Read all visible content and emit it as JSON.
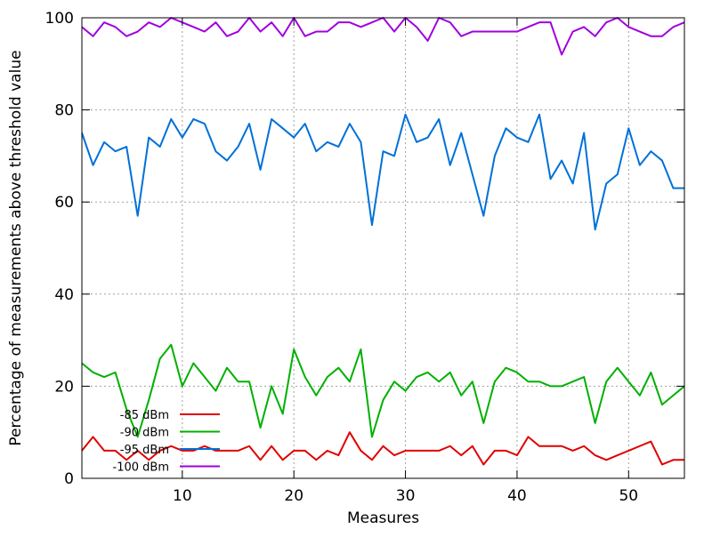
{
  "chart_data": {
    "type": "line",
    "xlabel": "Measures",
    "ylabel": "Percentage of measurements above threshold value",
    "xlim": [
      1,
      55
    ],
    "ylim": [
      0,
      100
    ],
    "xticks": [
      10,
      20,
      30,
      40,
      50
    ],
    "yticks": [
      0,
      20,
      40,
      60,
      80,
      100
    ],
    "grid": true,
    "legend_position": "bottom-left",
    "x": [
      1,
      2,
      3,
      4,
      5,
      6,
      7,
      8,
      9,
      10,
      11,
      12,
      13,
      14,
      15,
      16,
      17,
      18,
      19,
      20,
      21,
      22,
      23,
      24,
      25,
      26,
      27,
      28,
      29,
      30,
      31,
      32,
      33,
      34,
      35,
      36,
      37,
      38,
      39,
      40,
      41,
      42,
      43,
      44,
      45,
      46,
      47,
      48,
      49,
      50,
      51,
      52,
      53,
      54,
      55
    ],
    "series": [
      {
        "name": "-85 dBm",
        "color": "#e00000",
        "values": [
          6,
          9,
          6,
          6,
          4,
          6,
          4,
          6,
          7,
          6,
          6,
          7,
          6,
          6,
          6,
          7,
          4,
          7,
          4,
          6,
          6,
          4,
          6,
          5,
          10,
          6,
          4,
          7,
          5,
          6,
          6,
          6,
          6,
          7,
          5,
          7,
          3,
          6,
          6,
          5,
          9,
          7,
          7,
          7,
          6,
          7,
          5,
          4,
          5,
          6,
          7,
          8,
          3,
          4,
          4
        ]
      },
      {
        "name": "-90 dBm",
        "color": "#00b000",
        "values": [
          25,
          23,
          22,
          23,
          15,
          9,
          17,
          26,
          29,
          20,
          25,
          22,
          19,
          24,
          21,
          21,
          11,
          20,
          14,
          28,
          22,
          18,
          22,
          24,
          21,
          28,
          9,
          17,
          21,
          19,
          22,
          23,
          21,
          23,
          18,
          21,
          12,
          21,
          24,
          23,
          21,
          21,
          20,
          20,
          21,
          22,
          12,
          21,
          24,
          21,
          18,
          23,
          16,
          18,
          20
        ]
      },
      {
        "name": "-95 dBm",
        "color": "#0070d8",
        "values": [
          75,
          68,
          73,
          71,
          72,
          57,
          74,
          72,
          78,
          74,
          78,
          77,
          71,
          69,
          72,
          77,
          67,
          78,
          76,
          74,
          77,
          71,
          73,
          72,
          77,
          73,
          55,
          71,
          70,
          79,
          73,
          74,
          78,
          68,
          75,
          66,
          57,
          70,
          76,
          74,
          73,
          79,
          65,
          69,
          64,
          75,
          54,
          64,
          66,
          76,
          68,
          71,
          69,
          63,
          63
        ]
      },
      {
        "name": "-100 dBm",
        "color": "#a000e0",
        "values": [
          98,
          96,
          99,
          98,
          96,
          97,
          99,
          98,
          100,
          99,
          98,
          97,
          99,
          96,
          97,
          100,
          97,
          99,
          96,
          100,
          96,
          97,
          97,
          99,
          99,
          98,
          99,
          100,
          97,
          100,
          98,
          95,
          100,
          99,
          96,
          97,
          97,
          97,
          97,
          97,
          98,
          99,
          99,
          92,
          97,
          98,
          96,
          99,
          100,
          98,
          97,
          96,
          96,
          98,
          99
        ]
      }
    ]
  }
}
